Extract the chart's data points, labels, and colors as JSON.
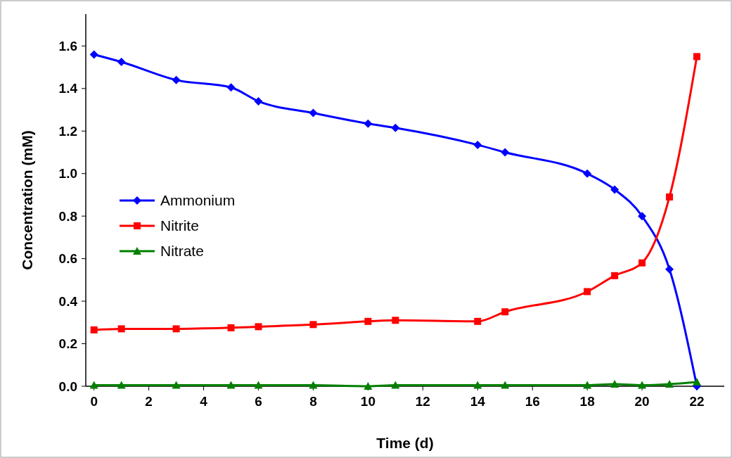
{
  "chart_data": {
    "type": "line",
    "xlabel": "Time (d)",
    "ylabel": "Concentration (mM)",
    "xlim": [
      -0.3,
      23
    ],
    "ylim": [
      0,
      1.75
    ],
    "xticks": [
      0,
      2,
      4,
      6,
      8,
      10,
      12,
      14,
      16,
      18,
      20,
      22
    ],
    "yticks": [
      {
        "value": 0,
        "label": "0.0"
      },
      {
        "value": 0.2,
        "label": "0.2"
      },
      {
        "value": 0.4,
        "label": "0.4"
      },
      {
        "value": 0.6,
        "label": "0.6"
      },
      {
        "value": 0.8,
        "label": "0.8"
      },
      {
        "value": 1,
        "label": "1.0"
      },
      {
        "value": 1.2,
        "label": "1.2"
      },
      {
        "value": 1.4,
        "label": "1.4"
      },
      {
        "value": 1.6,
        "label": "1.6"
      }
    ],
    "x": [
      0,
      1,
      3,
      5,
      6,
      8,
      10,
      11,
      14,
      15,
      18,
      19,
      20,
      21,
      22
    ],
    "series": [
      {
        "name": "Ammonium",
        "color": "#0000ff",
        "marker": "diamond",
        "values": [
          1.56,
          1.525,
          1.44,
          1.405,
          1.34,
          1.285,
          1.235,
          1.215,
          1.135,
          1.1,
          1.0,
          0.925,
          0.8,
          0.55,
          0.0
        ]
      },
      {
        "name": "Nitrite",
        "color": "#ff0000",
        "marker": "square",
        "values": [
          0.265,
          0.27,
          0.27,
          0.275,
          0.28,
          0.29,
          0.305,
          0.31,
          0.305,
          0.35,
          0.445,
          0.52,
          0.58,
          0.89,
          1.55
        ]
      },
      {
        "name": "Nitrate",
        "color": "#008000",
        "marker": "triangle",
        "values": [
          0.005,
          0.005,
          0.005,
          0.005,
          0.005,
          0.005,
          0,
          0.005,
          0.005,
          0.005,
          0.005,
          0.01,
          0.005,
          0.01,
          0.02
        ]
      }
    ],
    "legend": "left",
    "grid": false
  }
}
